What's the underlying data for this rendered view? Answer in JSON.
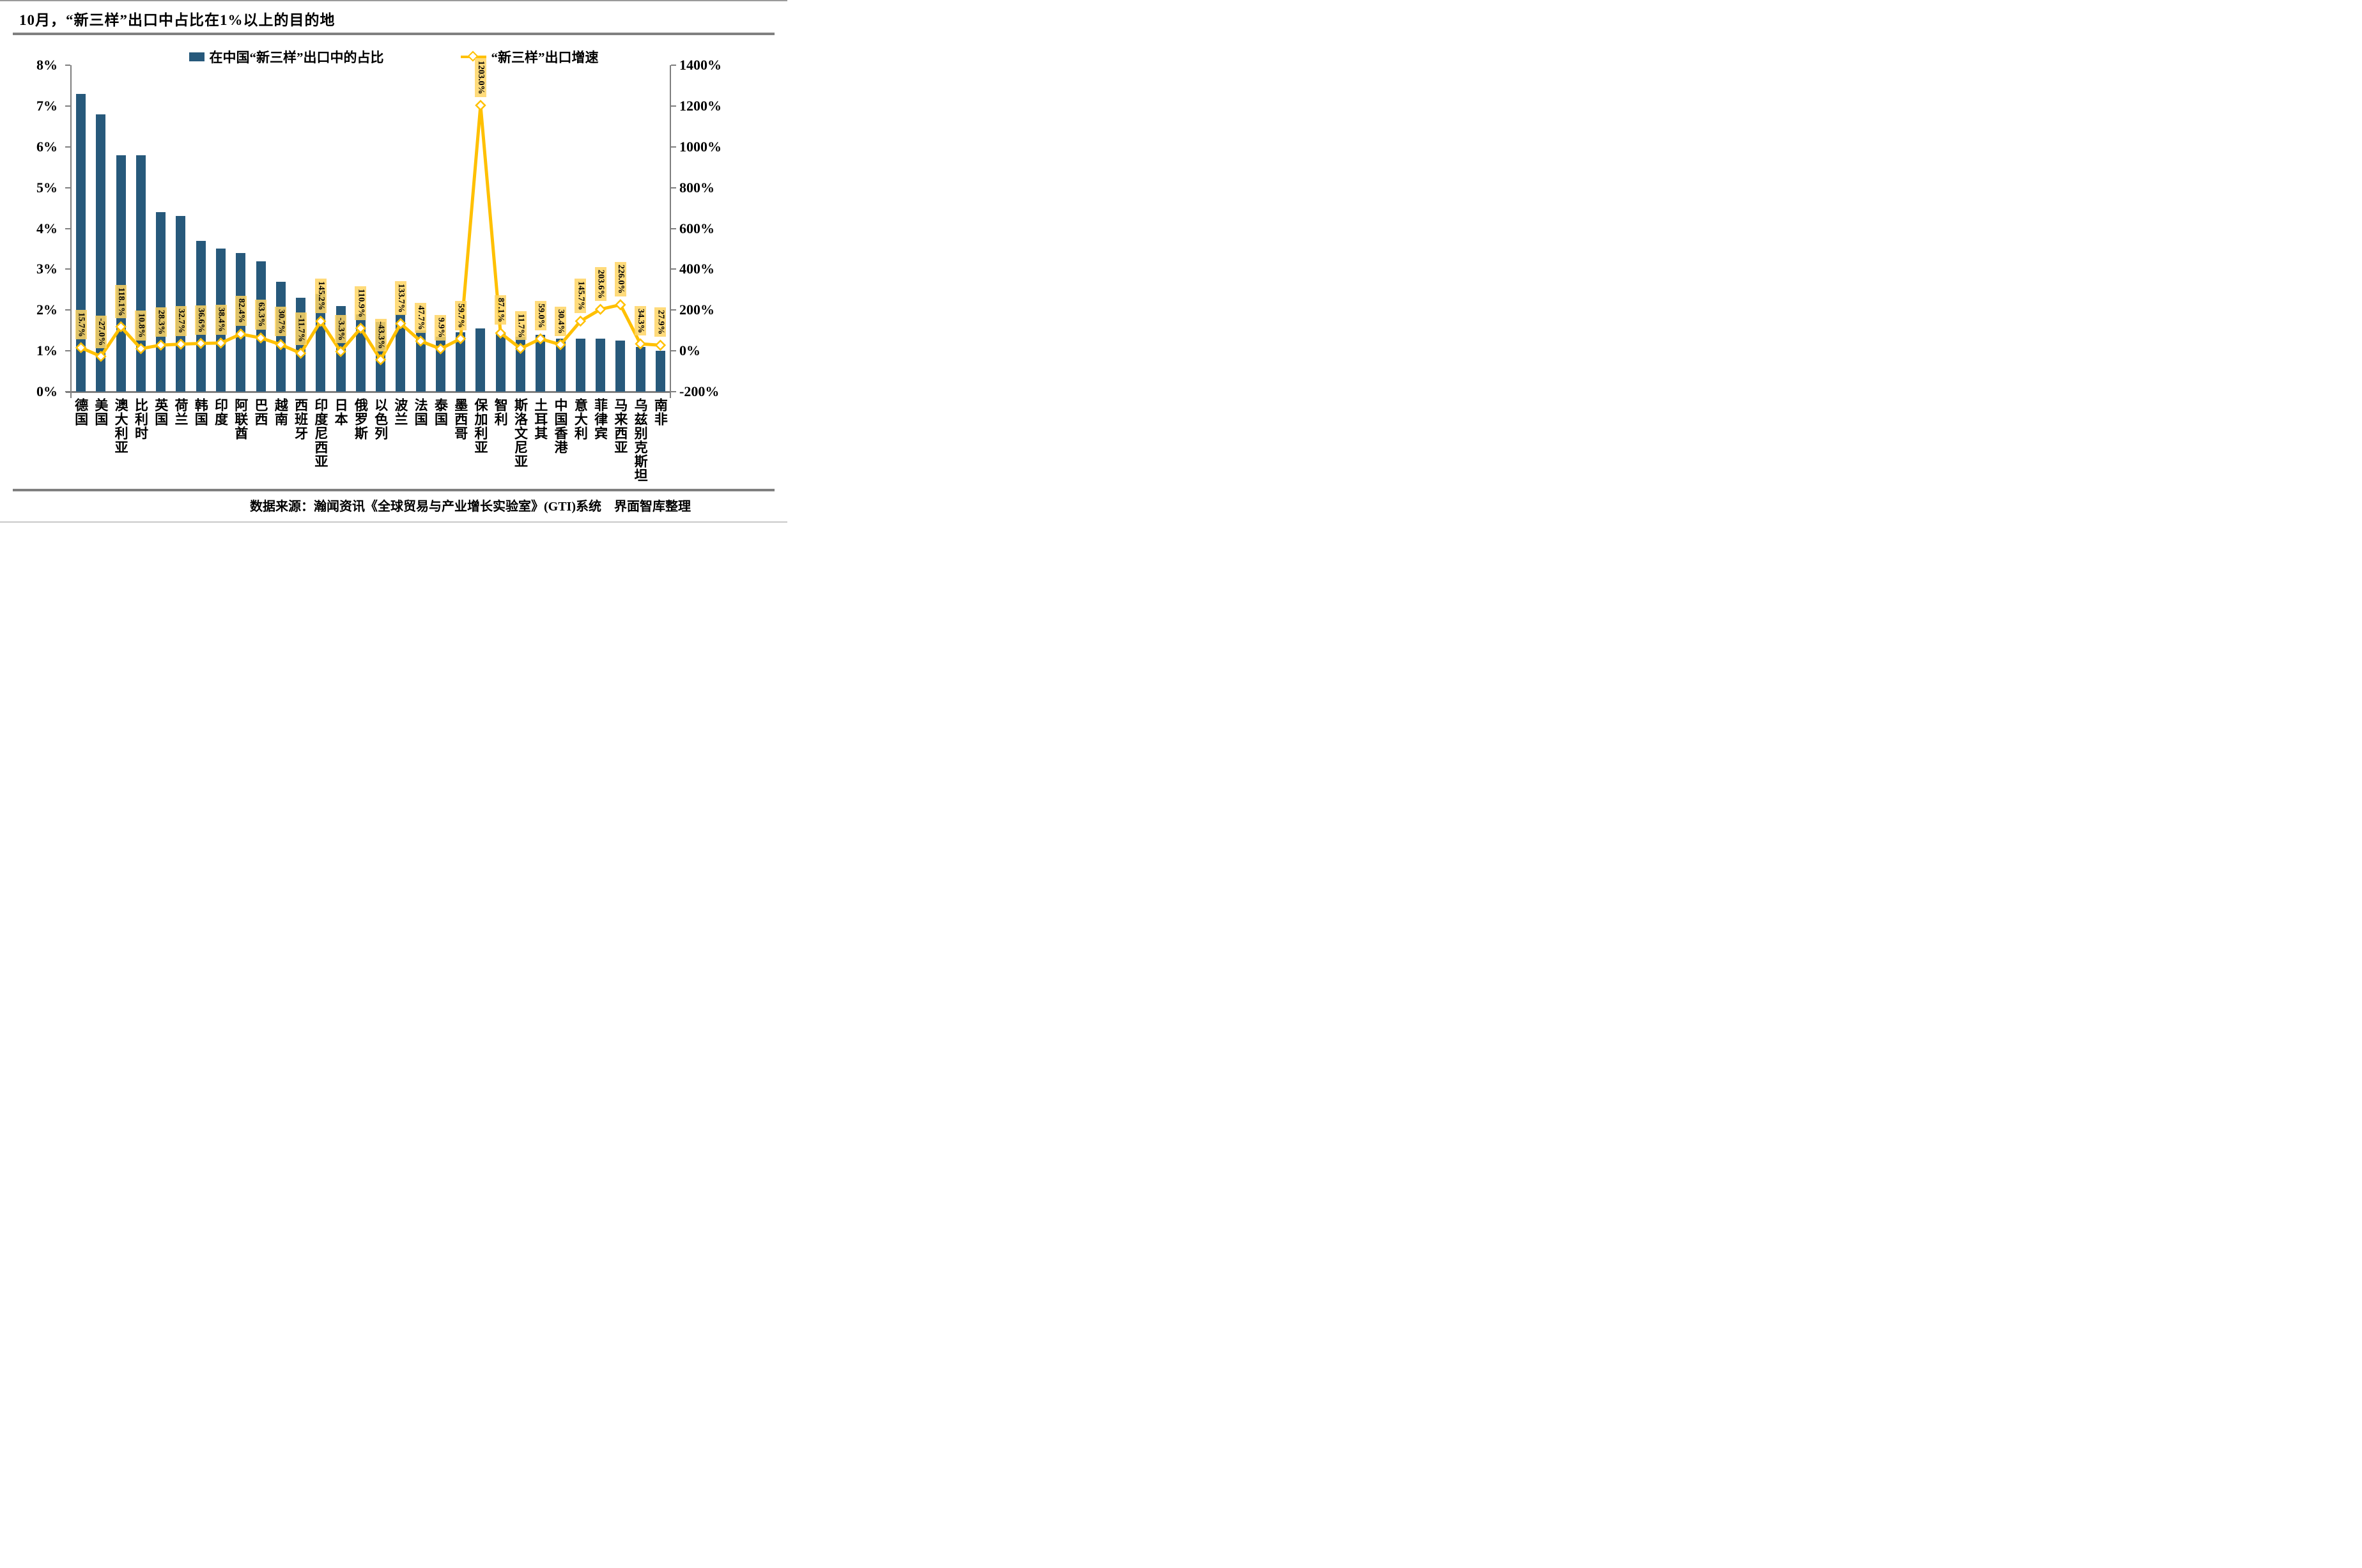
{
  "title": "10月，“新三样”出口中占比在1%以上的目的地",
  "legend": {
    "bar_label": "在中国“新三样”出口中的占比",
    "line_label": "“新三样”出口增速"
  },
  "source_note": "数据来源：瀚闻资讯《全球贸易与产业增长实验室》(GTI)系统　界面智库整理",
  "colors": {
    "bar": "#27597B",
    "line": "#FFC000",
    "marker_fill": "#FFFFFF",
    "label_bg": "#FFD564",
    "axis": "#7F7F7F",
    "text": "#000000"
  },
  "chart_data": {
    "type": "bar+line",
    "title": "10月，“新三样”出口中占比在1%以上的目的地",
    "categories": [
      "德国",
      "美国",
      "澳大利亚",
      "比利时",
      "英国",
      "荷兰",
      "韩国",
      "印度",
      "阿联酋",
      "巴西",
      "越南",
      "西班牙",
      "印度尼西亚",
      "日本",
      "俄罗斯",
      "以色列",
      "波兰",
      "法国",
      "泰国",
      "墨西哥",
      "保加利亚",
      "智利",
      "斯洛文尼亚",
      "土耳其",
      "中国香港",
      "意大利",
      "菲律宾",
      "马来西亚",
      "乌兹别克斯坦",
      "南非"
    ],
    "series": [
      {
        "name": "在中国“新三样”出口中的占比",
        "type": "bar",
        "axis": "left",
        "unit": "%",
        "values": [
          7.3,
          6.8,
          5.8,
          5.8,
          4.4,
          4.3,
          3.7,
          3.5,
          3.4,
          3.2,
          2.7,
          2.3,
          2.4,
          2.1,
          1.9,
          1.7,
          1.9,
          1.5,
          1.35,
          1.45,
          1.55,
          1.45,
          1.35,
          1.4,
          1.3,
          1.3,
          1.3,
          1.25,
          1.1,
          1.0
        ]
      },
      {
        "name": "“新三样”出口增速",
        "type": "line",
        "axis": "right",
        "unit": "%",
        "values": [
          15.7,
          -27.0,
          118.1,
          10.8,
          28.3,
          32.7,
          36.6,
          38.4,
          82.4,
          63.3,
          30.7,
          -11.7,
          145.2,
          -3.3,
          110.9,
          -43.3,
          133.7,
          47.7,
          9.9,
          59.7,
          1203.0,
          87.1,
          11.7,
          59.0,
          30.4,
          145.7,
          203.6,
          226.0,
          34.3,
          27.9
        ],
        "data_labels": [
          "15.7%",
          "-27.0%",
          "118.1%",
          "10.8%",
          "28.3%",
          "32.7%",
          "36.6%",
          "38.4%",
          "82.4%",
          "63.3%",
          "30.7%",
          "-11.7%",
          "145.2%",
          "-3.3%",
          "110.9%",
          "-43.3%",
          "133.7%",
          "47.7%",
          "9.9%",
          "59.7%",
          "1203.0%",
          "87.1%",
          "11.7%",
          "59.0%",
          "30.4%",
          "145.7%",
          "203.6%",
          "226.0%",
          "34.3%",
          "27.9%"
        ]
      }
    ],
    "left_axis": {
      "ticks": [
        "8%",
        "7%",
        "6%",
        "5%",
        "4%",
        "3%",
        "2%",
        "1%",
        "0%"
      ],
      "min": 0,
      "max": 8
    },
    "right_axis": {
      "ticks": [
        "1400%",
        "1200%",
        "1000%",
        "800%",
        "600%",
        "400%",
        "200%",
        "0%",
        "-200%"
      ],
      "min": -200,
      "max": 1400
    },
    "grid": false,
    "legend_position": "top"
  }
}
